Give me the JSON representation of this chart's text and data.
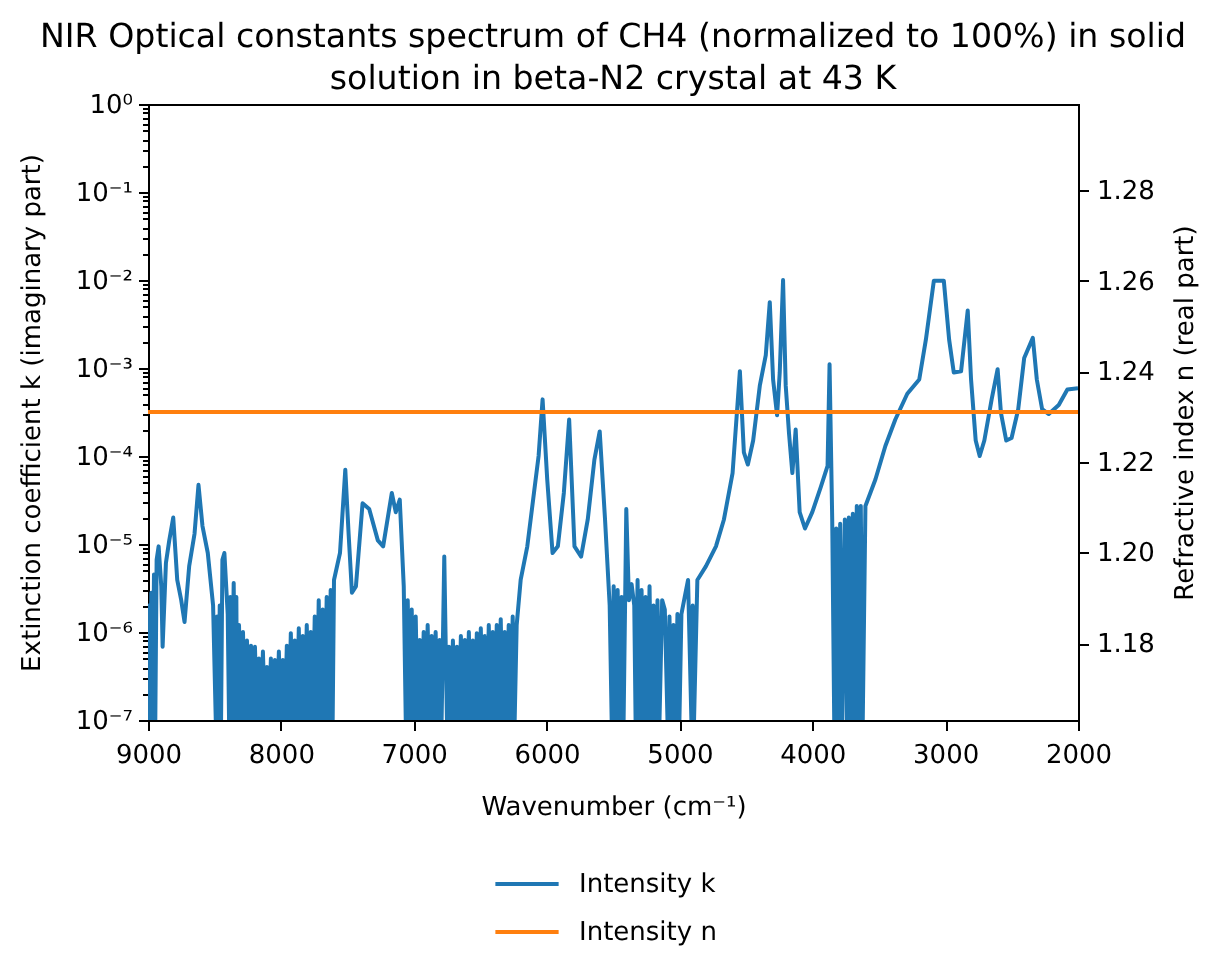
{
  "chart_data": {
    "type": "line",
    "title": "NIR Optical constants spectrum of CH4 (normalized to 100%) in solid\nsolution in beta-N2 crystal at 43 K",
    "xlabel": "Wavenumber (cm⁻¹)",
    "ylabel": "Extinction coefficient k (imaginary part)",
    "y2label": "Refractive index n (real part)",
    "xlim": [
      9000,
      2000
    ],
    "xticks": [
      9000,
      8000,
      7000,
      6000,
      5000,
      4000,
      3000,
      2000
    ],
    "ylim": [
      1e-07,
      1
    ],
    "log": "y",
    "yticks": [
      {
        "value": 1e-07,
        "label": "10⁻⁷"
      },
      {
        "value": 2e-07,
        "label": null
      },
      {
        "value": 3e-07,
        "label": null
      },
      {
        "value": 4e-07,
        "label": null
      },
      {
        "value": 5e-07,
        "label": null
      },
      {
        "value": 6e-07,
        "label": null
      },
      {
        "value": 7e-07,
        "label": null
      },
      {
        "value": 8e-07,
        "label": null
      },
      {
        "value": 9e-07,
        "label": null
      },
      {
        "value": 1e-06,
        "label": "10⁻⁶"
      },
      {
        "value": 2e-06,
        "label": null
      },
      {
        "value": 3e-06,
        "label": null
      },
      {
        "value": 4e-06,
        "label": null
      },
      {
        "value": 5e-06,
        "label": null
      },
      {
        "value": 6e-06,
        "label": null
      },
      {
        "value": 7e-06,
        "label": null
      },
      {
        "value": 8e-06,
        "label": null
      },
      {
        "value": 9e-06,
        "label": null
      },
      {
        "value": 1e-05,
        "label": "10⁻⁵"
      },
      {
        "value": 2e-05,
        "label": null
      },
      {
        "value": 3e-05,
        "label": null
      },
      {
        "value": 4e-05,
        "label": null
      },
      {
        "value": 5e-05,
        "label": null
      },
      {
        "value": 6e-05,
        "label": null
      },
      {
        "value": 7e-05,
        "label": null
      },
      {
        "value": 8e-05,
        "label": null
      },
      {
        "value": 9e-05,
        "label": null
      },
      {
        "value": 0.0001,
        "label": "10⁻⁴"
      },
      {
        "value": 0.0002,
        "label": null
      },
      {
        "value": 0.0003,
        "label": null
      },
      {
        "value": 0.0004,
        "label": null
      },
      {
        "value": 0.0005,
        "label": null
      },
      {
        "value": 0.0006,
        "label": null
      },
      {
        "value": 0.0007,
        "label": null
      },
      {
        "value": 0.0008,
        "label": null
      },
      {
        "value": 0.0009,
        "label": null
      },
      {
        "value": 0.001,
        "label": "10⁻³"
      },
      {
        "value": 0.002,
        "label": null
      },
      {
        "value": 0.003,
        "label": null
      },
      {
        "value": 0.004,
        "label": null
      },
      {
        "value": 0.005,
        "label": null
      },
      {
        "value": 0.006,
        "label": null
      },
      {
        "value": 0.007,
        "label": null
      },
      {
        "value": 0.008,
        "label": null
      },
      {
        "value": 0.009,
        "label": null
      },
      {
        "value": 0.01,
        "label": "10⁻²"
      },
      {
        "value": 0.02,
        "label": null
      },
      {
        "value": 0.03,
        "label": null
      },
      {
        "value": 0.04,
        "label": null
      },
      {
        "value": 0.05,
        "label": null
      },
      {
        "value": 0.06,
        "label": null
      },
      {
        "value": 0.07,
        "label": null
      },
      {
        "value": 0.08,
        "label": null
      },
      {
        "value": 0.09,
        "label": null
      },
      {
        "value": 0.1,
        "label": "10⁻¹"
      },
      {
        "value": 0.2,
        "label": null
      },
      {
        "value": 0.3,
        "label": null
      },
      {
        "value": 0.4,
        "label": null
      },
      {
        "value": 0.5,
        "label": null
      },
      {
        "value": 0.6,
        "label": null
      },
      {
        "value": 0.7,
        "label": null
      },
      {
        "value": 0.8,
        "label": null
      },
      {
        "value": 0.9,
        "label": null
      },
      {
        "value": 1,
        "label": "10⁰"
      }
    ],
    "y2lim": [
      1.163,
      1.299
    ],
    "y2ticks": [
      1.18,
      {
        "value": 1.2,
        "label": "1.20"
      },
      1.22,
      1.24,
      1.26,
      1.28
    ],
    "legend": "bottom",
    "grid": false,
    "series": [
      {
        "name": "Intensity k",
        "color": "#1f77b4",
        "x": [
          9000,
          8992,
          8985,
          8975,
          8965,
          8955,
          8945,
          8935,
          8920,
          8900,
          8890,
          8865,
          8840,
          8810,
          8780,
          8750,
          8725,
          8690,
          8650,
          8620,
          8590,
          8550,
          8510,
          8490,
          8480,
          8470,
          8460,
          8450,
          8440,
          8425,
          8400,
          8390,
          8380,
          8370,
          8355,
          8345,
          8335,
          8330,
          8315,
          8300,
          8285,
          8270,
          8255,
          8240,
          8225,
          8210,
          8195,
          8180,
          8165,
          8150,
          8135,
          8120,
          8105,
          8090,
          8075,
          8060,
          8045,
          8030,
          8015,
          8000,
          7985,
          7970,
          7955,
          7940,
          7925,
          7910,
          7895,
          7880,
          7865,
          7850,
          7835,
          7820,
          7805,
          7790,
          7775,
          7760,
          7745,
          7730,
          7715,
          7700,
          7685,
          7670,
          7655,
          7640,
          7625,
          7610,
          7600,
          7555,
          7515,
          7490,
          7465,
          7435,
          7385,
          7335,
          7270,
          7230,
          7165,
          7135,
          7105,
          7075,
          7060,
          7045,
          7030,
          7015,
          7000,
          6985,
          6970,
          6955,
          6940,
          6925,
          6910,
          6895,
          6880,
          6865,
          6850,
          6835,
          6820,
          6805,
          6790,
          6770,
          6750,
          6735,
          6720,
          6705,
          6690,
          6675,
          6660,
          6645,
          6630,
          6615,
          6600,
          6585,
          6570,
          6555,
          6540,
          6525,
          6510,
          6495,
          6480,
          6465,
          6450,
          6435,
          6420,
          6405,
          6390,
          6375,
          6360,
          6345,
          6330,
          6315,
          6300,
          6285,
          6270,
          6255,
          6240,
          6225,
          6195,
          6145,
          6095,
          6060,
          6030,
          5995,
          5955,
          5915,
          5870,
          5830,
          5790,
          5740,
          5690,
          5640,
          5600,
          5560,
          5525,
          5510,
          5495,
          5480,
          5465,
          5450,
          5435,
          5420,
          5400,
          5380,
          5360,
          5340,
          5330,
          5315,
          5300,
          5285,
          5270,
          5255,
          5240,
          5225,
          5210,
          5195,
          5180,
          5165,
          5150,
          5130,
          5110,
          5090,
          5075,
          5060,
          5045,
          5030,
          5015,
          5000,
          4985,
          4960,
          4935,
          4910,
          4900,
          4890,
          4865,
          4800,
          4725,
          4665,
          4600,
          4545,
          4515,
          4485,
          4445,
          4395,
          4350,
          4320,
          4295,
          4265,
          4245,
          4220,
          4200,
          4175,
          4150,
          4125,
          4095,
          4055,
          4000,
          3935,
          3885,
          3870,
          3850,
          3835,
          3820,
          3805,
          3790,
          3775,
          3755,
          3740,
          3725,
          3710,
          3695,
          3680,
          3665,
          3650,
          3635,
          3620,
          3600,
          3525,
          3450,
          3375,
          3285,
          3195,
          3145,
          3085,
          3010,
          2970,
          2935,
          2880,
          2830,
          2805,
          2770,
          2740,
          2705,
          2650,
          2605,
          2580,
          2540,
          2500,
          2450,
          2405,
          2340,
          2310,
          2270,
          2220,
          2145,
          2080,
          2000
        ],
        "values": [
          1e-07,
          2e-06,
          1e-07,
          2.8e-06,
          1e-07,
          4.5e-06,
          1e-07,
          6.6e-06,
          9.4e-06,
          3.3e-06,
          6.8e-07,
          6.1e-06,
          1.1e-05,
          2e-05,
          3.9e-06,
          2.3e-06,
          1.3e-06,
          5.6e-06,
          1.3e-05,
          4.7e-05,
          1.6e-05,
          7.9e-06,
          2e-06,
          1e-07,
          1.5e-06,
          1e-07,
          2e-06,
          1e-07,
          6.6e-06,
          7.9e-06,
          1.6e-06,
          1e-07,
          2.5e-06,
          1e-07,
          3.6e-06,
          1e-07,
          2.5e-06,
          1e-07,
          1.2e-06,
          1e-07,
          1e-06,
          1e-07,
          8e-07,
          1e-07,
          7e-07,
          1e-07,
          6.8e-07,
          1e-07,
          5e-07,
          1e-07,
          6e-07,
          1e-07,
          4e-07,
          1e-07,
          5e-07,
          1e-07,
          4.8e-07,
          1e-07,
          6e-07,
          1e-07,
          4.8e-07,
          1e-07,
          7e-07,
          1e-07,
          9.7e-07,
          1e-07,
          8e-07,
          1e-07,
          1.1e-06,
          1e-07,
          9e-07,
          1e-07,
          1.2e-06,
          1e-07,
          1e-06,
          1e-07,
          1.5e-06,
          1e-07,
          2.3e-06,
          1e-07,
          1.8e-06,
          1e-07,
          2.5e-06,
          1e-07,
          3e-06,
          1e-07,
          3.9e-06,
          7.9e-06,
          7e-05,
          1.3e-05,
          2.8e-06,
          3.3e-06,
          2.9e-05,
          2.5e-05,
          1.1e-05,
          9.4e-06,
          3.8e-05,
          2.3e-05,
          3.2e-05,
          3.3e-06,
          1e-07,
          2.3e-06,
          1e-07,
          1.8e-06,
          1e-07,
          1.5e-06,
          1e-07,
          8.1e-07,
          1e-07,
          1e-06,
          1e-07,
          1.2e-06,
          1e-07,
          9e-07,
          1e-07,
          1e-06,
          1e-07,
          8.1e-07,
          1e-07,
          7.2e-06,
          1e-07,
          6.8e-07,
          1e-07,
          8e-07,
          1e-07,
          6.8e-07,
          1e-07,
          9e-07,
          1e-07,
          8.1e-07,
          1e-07,
          1e-06,
          1e-07,
          8e-07,
          1e-07,
          9.7e-07,
          1e-07,
          1.1e-06,
          1e-07,
          9e-07,
          1e-07,
          1.2e-06,
          1e-07,
          1e-06,
          1e-07,
          1.2e-06,
          1e-07,
          1.4e-06,
          1e-07,
          1e-06,
          1e-07,
          1.2e-06,
          1e-07,
          1.5e-06,
          1e-07,
          1.2e-06,
          3.9e-06,
          9.4e-06,
          3.8e-05,
          0.0001,
          0.00044,
          5.4e-05,
          7.9e-06,
          9.4e-06,
          3.8e-05,
          0.00026,
          9.4e-06,
          7.2e-06,
          1.9e-05,
          9.1e-05,
          0.00019,
          1.9e-05,
          2e-06,
          1e-07,
          3.3e-06,
          1e-07,
          3e-06,
          1e-07,
          2.5e-06,
          1e-07,
          2.5e-05,
          2.3e-06,
          3.5e-06,
          2e-06,
          1e-07,
          3.9e-06,
          1e-07,
          3e-06,
          1e-07,
          2.5e-06,
          1e-07,
          3.3e-06,
          1e-07,
          2e-06,
          1e-07,
          2.3e-06,
          1e-07,
          2.3e-06,
          1.8e-06,
          1e-07,
          1.5e-06,
          1e-07,
          1.2e-06,
          1e-07,
          1.6e-06,
          1e-07,
          1.6e-06,
          2.5e-06,
          3.9e-06,
          1e-07,
          2e-06,
          1e-07,
          3.9e-06,
          5.6e-06,
          9.4e-06,
          1.9e-05,
          6.4e-05,
          0.00092,
          0.00011,
          8e-05,
          0.00015,
          0.00063,
          0.0014,
          0.0056,
          0.00074,
          0.00029,
          0.00089,
          0.01,
          0.00063,
          0.00018,
          6.4e-05,
          0.0002,
          2.3e-05,
          1.5e-05,
          2.3e-05,
          4.5e-05,
          7.7e-05,
          0.0011,
          1.9e-05,
          1e-07,
          1.5e-05,
          1e-07,
          1.7e-05,
          1e-07,
          1.9e-05,
          1e-07,
          2e-05,
          1e-07,
          2.2e-05,
          1e-07,
          2.7e-05,
          1e-07,
          2.7e-05,
          1e-07,
          2.7e-05,
          5.4e-05,
          0.00013,
          0.00026,
          0.00051,
          0.00074,
          0.0021,
          0.0098,
          0.0098,
          0.0021,
          0.00089,
          0.00092,
          0.0045,
          0.00074,
          0.00015,
          0.0001,
          0.00015,
          0.00044,
          0.00097,
          0.00031,
          0.00015,
          0.00016,
          0.00034,
          0.0013,
          0.0022,
          0.00074,
          0.00034,
          0.0003,
          0.00038,
          0.00057,
          0.00059
        ]
      },
      {
        "name": "Intensity n",
        "color": "#ff7f0e",
        "axis": "y2",
        "x": [
          9000,
          2000
        ],
        "values": [
          1.231,
          1.231
        ]
      }
    ]
  }
}
